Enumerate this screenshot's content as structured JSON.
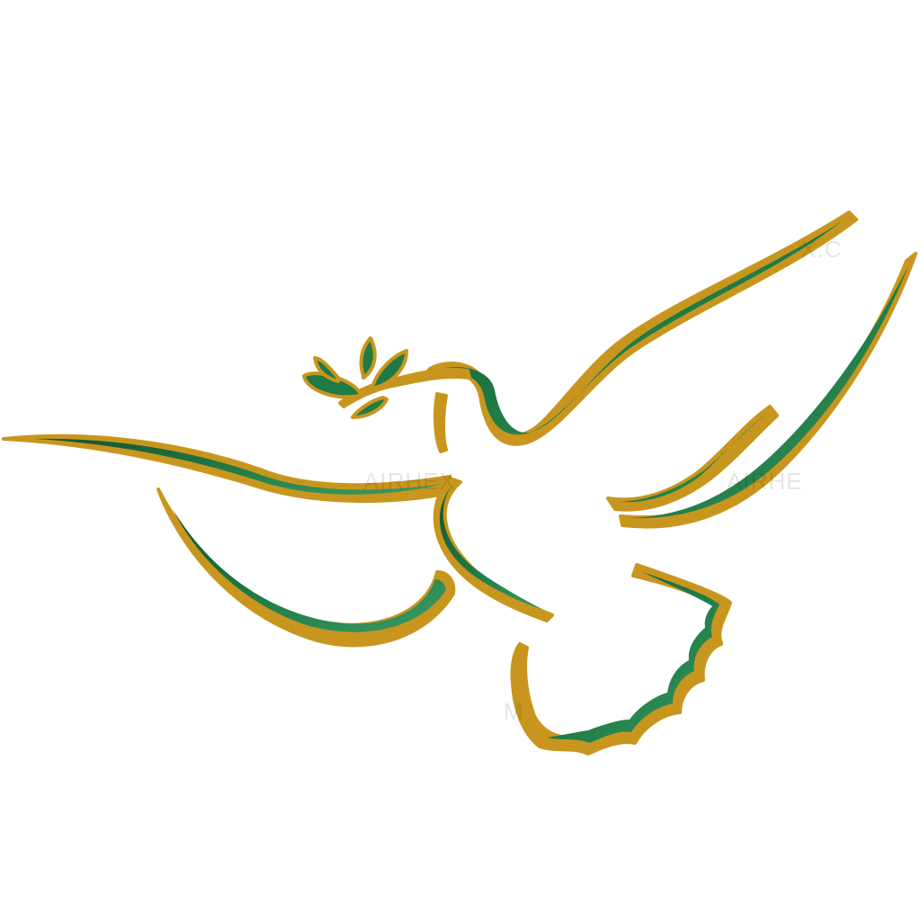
{
  "logo": {
    "subject": "dove-with-olive-branch",
    "colors": {
      "background": "#ffffff",
      "outline_gold": "#c8961e",
      "green_dark": "#15532e",
      "green_mid": "#1f7a45",
      "green_light": "#3c9a63"
    }
  },
  "watermark": {
    "text_1": "AIRHEX",
    "text_2": "AIRHE",
    "text_3": "X.C",
    "text_4": "M"
  }
}
